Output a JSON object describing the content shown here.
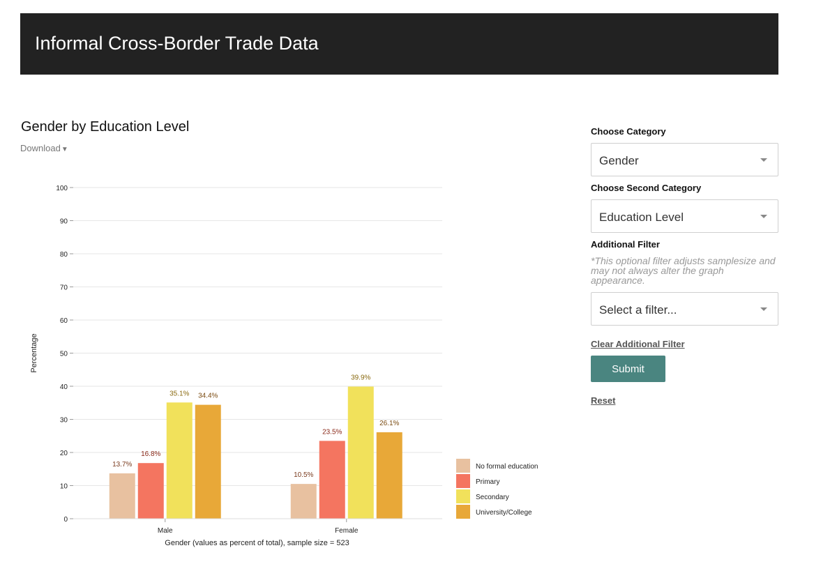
{
  "header": {
    "title": "Informal Cross-Border Trade Data"
  },
  "chart_header": {
    "title": "Gender by Education Level",
    "download_label": "Download",
    "download_caret": "▼"
  },
  "sidebar": {
    "category_label": "Choose Category",
    "category_value": "Gender",
    "second_category_label": "Choose Second Category",
    "second_category_value": "Education Level",
    "filter_label": "Additional Filter",
    "filter_note": "*This optional filter adjusts samplesize and may not always alter the graph appearance.",
    "filter_placeholder": "Select a filter...",
    "clear_filter_label": "Clear Additional Filter",
    "submit_label": "Submit",
    "reset_label": "Reset"
  },
  "chart_data": {
    "type": "bar",
    "categories": [
      "Male",
      "Female"
    ],
    "series": [
      {
        "name": "No formal education",
        "values": [
          13.7,
          10.5
        ],
        "labels": [
          "13.7%",
          "10.5%"
        ],
        "color": "#e8c1a0"
      },
      {
        "name": "Primary",
        "values": [
          16.8,
          23.5
        ],
        "labels": [
          "16.8%",
          "23.5%"
        ],
        "color": "#f47560"
      },
      {
        "name": "Secondary",
        "values": [
          35.1,
          39.9
        ],
        "labels": [
          "35.1%",
          "39.9%"
        ],
        "color": "#f1e15b"
      },
      {
        "name": "University/College",
        "values": [
          34.4,
          26.1
        ],
        "labels": [
          "34.4%",
          "26.1%"
        ],
        "color": "#e8a838"
      }
    ],
    "label_colors": [
      "#7a3b1e",
      "#8a2a1a",
      "#8a6a10",
      "#7a4a10"
    ],
    "ylim": [
      0,
      100
    ],
    "yticks": [
      0,
      10,
      20,
      30,
      40,
      50,
      60,
      70,
      80,
      90,
      100
    ],
    "ylabel": "Percentage",
    "xlabel": "Gender (values as percent of total), sample size = 523",
    "grid": true,
    "legend_position": "bottom-right"
  }
}
